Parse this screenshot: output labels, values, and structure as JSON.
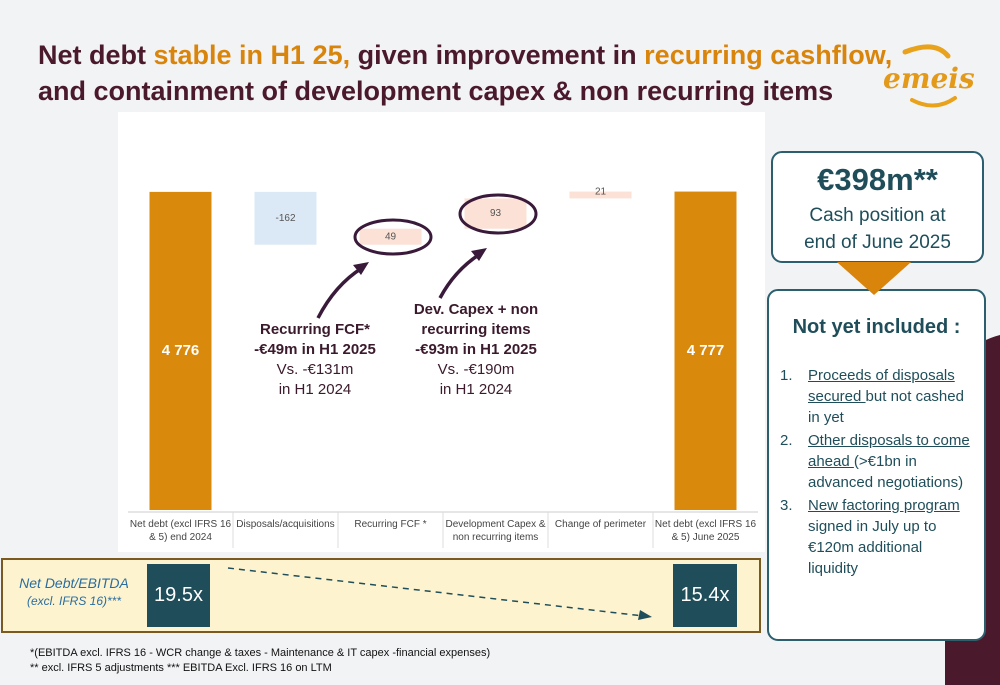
{
  "header": {
    "title_line1": [
      "Net debt ",
      "stable in H1 25,",
      " given improvement in ",
      "recurring cashflow,"
    ],
    "title_line2": "and containment of development capex & non recurring items",
    "logo": "emeis"
  },
  "chart_data": {
    "type": "waterfall",
    "categories": [
      "Net debt (excl IFRS 16 & 5) end 2024",
      "Disposals/acquisitions",
      "Recurring FCF *",
      "Development Capex & non recurring items",
      "Change of perimeter",
      "Net debt (excl IFRS 16 & 5) June 2025"
    ],
    "values": [
      4776,
      -162,
      49,
      93,
      21,
      4777
    ],
    "value_labels": [
      "4 776",
      "-162",
      "49",
      "93",
      "21",
      "4 777"
    ],
    "totals": [
      0,
      5
    ],
    "colors": {
      "total": "#d98a0c",
      "increase": "#fbe1d6",
      "decrease": "#dbe8f5"
    },
    "ylim": [
      3800,
      4880
    ],
    "annotations": [
      {
        "bold": [
          "Recurring FCF*",
          "-€49m in H1 2025"
        ],
        "lines": [
          "Vs. -€131m",
          "in H1 2024"
        ]
      },
      {
        "bold": [
          "Dev. Capex + non",
          "recurring items",
          "-€93m in H1 2025"
        ],
        "lines": [
          "Vs. -€190m",
          "in H1 2024"
        ]
      }
    ]
  },
  "ratio": {
    "label": [
      "Net Debt/EBITDA",
      "(excl. IFRS 16)***"
    ],
    "start": "19.5x",
    "end": "15.4x"
  },
  "cash": {
    "amount": "€398m**",
    "text": [
      "Cash position at",
      "end of June 2025"
    ]
  },
  "pending": {
    "title": "Not yet included :",
    "items": [
      {
        "number": "1.",
        "link": "Proceeds of disposals secured ",
        "text": "but not cashed in yet"
      },
      {
        "number": "2.",
        "link": "Other disposals to come ahead ",
        "text": "(>€1bn in advanced negotiations)"
      },
      {
        "number": "3.",
        "link": "New factoring program ",
        "text": "signed in July up to €120m additional liquidity"
      }
    ]
  },
  "footnotes": [
    "*(EBITDA excl. IFRS 16 - WCR change & taxes - Maintenance & IT capex -financial expenses)",
    "** excl. IFRS 5 adjustments  *** EBITDA Excl. IFRS 16 on LTM"
  ]
}
